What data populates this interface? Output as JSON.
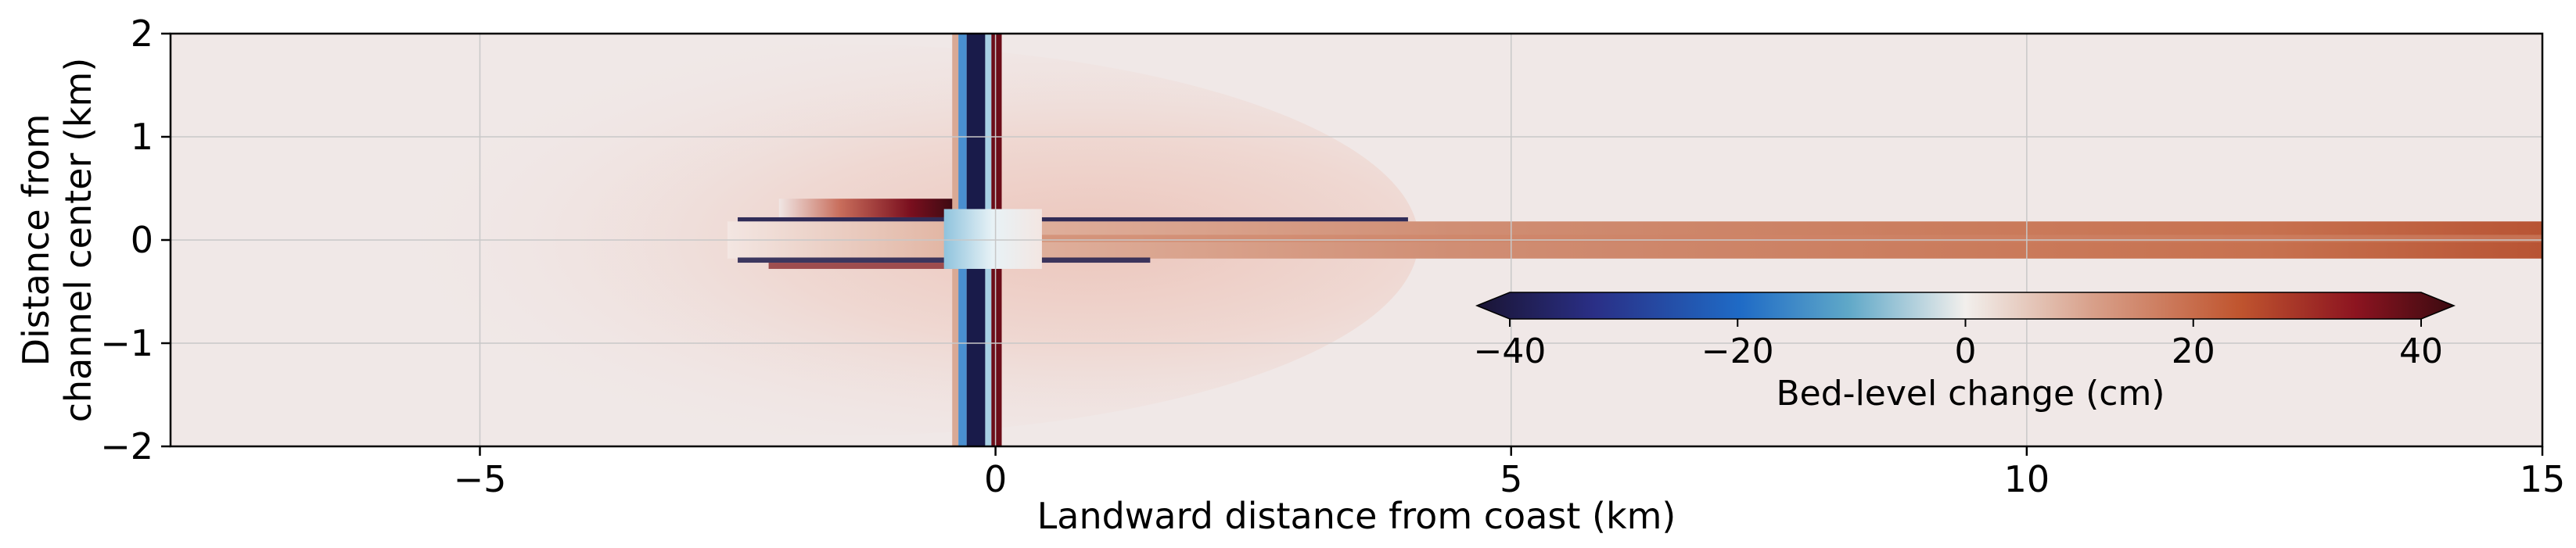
{
  "chart_data": {
    "type": "heatmap",
    "xlabel": "Landward distance from coast (km)",
    "ylabel_lines": [
      "Distance from",
      "channel center (km)"
    ],
    "xlim": [
      -8,
      15
    ],
    "ylim": [
      -2,
      2
    ],
    "xticks": [
      -5,
      0,
      5,
      10,
      15
    ],
    "yticks": [
      2,
      1,
      0,
      -1,
      -2
    ],
    "xtick_labels": [
      "−5",
      "0",
      "5",
      "10",
      "15"
    ],
    "ytick_labels": [
      "2",
      "1",
      "0",
      "−1",
      "−2"
    ],
    "grid": true,
    "colorbar": {
      "label": "Bed-level change (cm)",
      "range": [
        -40,
        40
      ],
      "extend": "both",
      "placement": "lower-right inset",
      "ticks": [
        -40,
        -20,
        0,
        20,
        40
      ],
      "tick_labels": [
        "−40",
        "−20",
        "0",
        "20",
        "40"
      ],
      "colors": [
        "#1a1433",
        "#2a2f86",
        "#1f6bc6",
        "#5fa8c8",
        "#f2efec",
        "#d8a08a",
        "#c0552f",
        "#8c1420",
        "#3a0a10"
      ]
    },
    "features": [
      {
        "name": "channel deposition",
        "x_range": [
          -0.3,
          15
        ],
        "y_range": [
          -0.18,
          0.18
        ],
        "value_cm": 20
      },
      {
        "name": "seaward deposition lobe",
        "x_range": [
          -7,
          -0.3
        ],
        "y_range": [
          -1.9,
          1.9
        ],
        "value_cm": 4
      },
      {
        "name": "deposition band north",
        "x_range": [
          -2.1,
          -0.4
        ],
        "y_range": [
          0.22,
          0.4
        ],
        "value_cm": 35
      },
      {
        "name": "erosion line north",
        "x_range": [
          -2.5,
          4
        ],
        "y_range": [
          0.18,
          0.22
        ],
        "value_cm": -40
      },
      {
        "name": "erosion line south",
        "x_range": [
          -2.5,
          1.5
        ],
        "y_range": [
          -0.22,
          -0.17
        ],
        "value_cm": -35
      },
      {
        "name": "coastal strip",
        "x_range": [
          -0.5,
          0.1
        ],
        "y_range": [
          -2,
          2
        ],
        "value_cm": "mixed -40 to 40"
      }
    ]
  }
}
